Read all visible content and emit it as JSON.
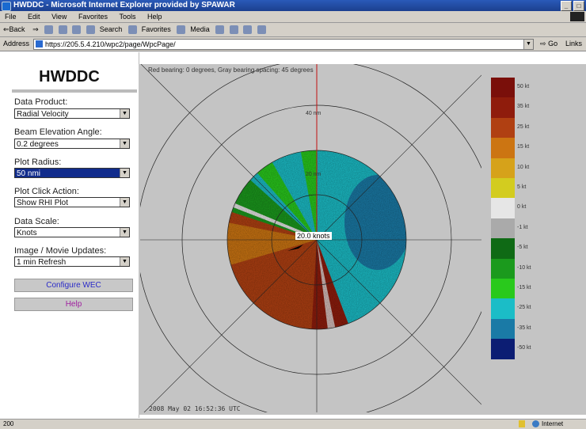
{
  "window": {
    "title": "HWDDC - Microsoft Internet Explorer provided by SPAWAR"
  },
  "menu": [
    "File",
    "Edit",
    "View",
    "Favorites",
    "Tools",
    "Help"
  ],
  "toolbar": {
    "back": "⇐Back",
    "search": "Search",
    "favorites": "Favorites",
    "media": "Media"
  },
  "address": {
    "label": "Address",
    "url": "https://205.5.4.210/wpc2/page/WpcPage/",
    "go": "Go",
    "links": "Links"
  },
  "sidebar": {
    "logo": "HWDDC",
    "controls": [
      {
        "label": "Data Product:",
        "value": "Radial Velocity"
      },
      {
        "label": "Beam Elevation Angle:",
        "value": "0.2 degrees"
      },
      {
        "label": "Plot Radius:",
        "value": "50 nmi"
      },
      {
        "label": "Plot Click Action:",
        "value": "Show RHI Plot"
      },
      {
        "label": "Data Scale:",
        "value": "Knots"
      },
      {
        "label": "Image / Movie Updates:",
        "value": "1 min Refresh"
      }
    ],
    "configure_button": "Configure WEC",
    "help_button": "Help"
  },
  "radar": {
    "bearing_note": "Red bearing: 0 degrees, Gray bearing spacing: 45 degrees",
    "timestamp": "2008 May 02  16:52:36  UTC",
    "ring_label_outer": "40 nm",
    "ring_label_inner": "20 nm",
    "speed_label": "20.0 knots"
  },
  "scale": [
    {
      "label": "50 kt",
      "color": "#7a0f0a"
    },
    {
      "label": "35 kt",
      "color": "#8f1c0c"
    },
    {
      "label": "25 kt",
      "color": "#b04012"
    },
    {
      "label": "15 kt",
      "color": "#cc7512"
    },
    {
      "label": "10 kt",
      "color": "#d6a21a"
    },
    {
      "label": "5 kt",
      "color": "#d3cc1f"
    },
    {
      "label": "0 kt",
      "color": "#e6e6e6"
    },
    {
      "label": "-1 kt",
      "color": "#aaaaaa"
    },
    {
      "label": "-5 kt",
      "color": "#0f6a15"
    },
    {
      "label": "-10 kt",
      "color": "#1b9a1d"
    },
    {
      "label": "-15 kt",
      "color": "#29c91c"
    },
    {
      "label": "-25 kt",
      "color": "#1bbdc7"
    },
    {
      "label": "-35 kt",
      "color": "#1a7aa6"
    },
    {
      "label": "-50 kt",
      "color": "#0c1d73"
    }
  ],
  "status": {
    "left": "200",
    "zone": "Internet"
  }
}
